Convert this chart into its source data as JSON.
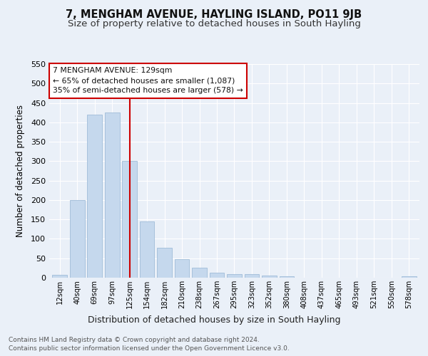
{
  "title": "7, MENGHAM AVENUE, HAYLING ISLAND, PO11 9JB",
  "subtitle": "Size of property relative to detached houses in South Hayling",
  "xlabel": "Distribution of detached houses by size in South Hayling",
  "ylabel": "Number of detached properties",
  "footnote1": "Contains HM Land Registry data © Crown copyright and database right 2024.",
  "footnote2": "Contains public sector information licensed under the Open Government Licence v3.0.",
  "categories": [
    "12sqm",
    "40sqm",
    "69sqm",
    "97sqm",
    "125sqm",
    "154sqm",
    "182sqm",
    "210sqm",
    "238sqm",
    "267sqm",
    "295sqm",
    "323sqm",
    "352sqm",
    "380sqm",
    "408sqm",
    "437sqm",
    "465sqm",
    "493sqm",
    "521sqm",
    "550sqm",
    "578sqm"
  ],
  "values": [
    8,
    200,
    420,
    425,
    300,
    145,
    77,
    48,
    25,
    12,
    10,
    10,
    5,
    3,
    0,
    0,
    0,
    0,
    0,
    0,
    4
  ],
  "bar_color": "#c5d8ed",
  "bar_edge_color": "#a0bcd8",
  "vline_x": 4,
  "vline_color": "#cc0000",
  "annotation_title": "7 MENGHAM AVENUE: 129sqm",
  "annotation_line1": "← 65% of detached houses are smaller (1,087)",
  "annotation_line2": "35% of semi-detached houses are larger (578) →",
  "annotation_box_color": "#ffffff",
  "annotation_box_edge_color": "#cc0000",
  "ylim": [
    0,
    550
  ],
  "yticks": [
    0,
    50,
    100,
    150,
    200,
    250,
    300,
    350,
    400,
    450,
    500,
    550
  ],
  "bg_color": "#eaf0f8",
  "grid_color": "#ffffff",
  "title_fontsize": 10.5,
  "subtitle_fontsize": 9.5
}
